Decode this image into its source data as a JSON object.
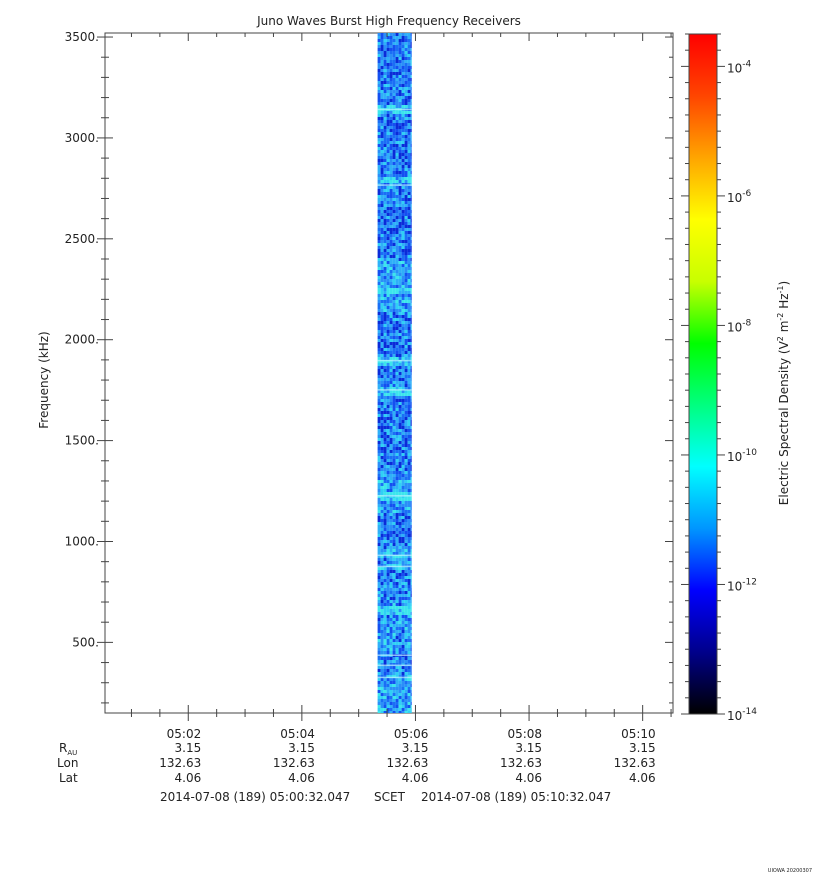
{
  "chart_data": {
    "type": "heatmap",
    "title": "Juno Waves Burst High Frequency Receivers",
    "ylabel": "Frequency (kHz)",
    "ylim": [
      150,
      3520
    ],
    "y_ticks": [
      500,
      1000,
      1500,
      2000,
      2500,
      3000,
      3500
    ],
    "y_tick_labels": [
      "500.",
      "1000.",
      "1500.",
      "2000.",
      "2500.",
      "3000.",
      "3500."
    ],
    "x_range": [
      "2014-07-08T05:00:32.047",
      "2014-07-08T05:10:32.047"
    ],
    "x_ticks": [
      "05:02",
      "05:04",
      "05:06",
      "05:08",
      "05:10"
    ],
    "data_block": {
      "start": "05:05:20",
      "end": "05:05:56",
      "freq_min": 150,
      "freq_max": 3520
    },
    "bright_bands_khz": [
      3150,
      2800,
      2250,
      1900,
      1750,
      1230,
      670,
      950,
      880
    ],
    "background_level_exponent": -12,
    "colorbar": {
      "label_prefix": "Electric Spectral Density (V",
      "label_parts": [
        "Electric Spectral Density (V",
        "2",
        " m",
        "-2",
        " Hz",
        "-1",
        ")"
      ],
      "range_exponent": [
        -14,
        -3.5
      ],
      "tick_exponents": [
        -14,
        -12,
        -10,
        -8,
        -6,
        -4
      ],
      "tick_base": "10",
      "tick_labels": [
        "-14",
        "-12",
        "-10",
        "-8",
        "-6",
        "-4"
      ],
      "colors": [
        "#000000",
        "#00008b",
        "#0000ff",
        "#0096ff",
        "#00ffff",
        "#00ff7f",
        "#00ff00",
        "#c8ff00",
        "#ffff00",
        "#ffa500",
        "#ff4500",
        "#ff0000"
      ]
    },
    "ephemeris": {
      "row_labels": {
        "r_main": "R",
        "r_sub": "AU",
        "lon": "Lon",
        "lat": "Lat"
      },
      "r_au": [
        "3.15",
        "3.15",
        "3.15",
        "3.15",
        "3.15"
      ],
      "lon": [
        "132.63",
        "132.63",
        "132.63",
        "132.63",
        "132.63"
      ],
      "lat": [
        "4.06",
        "4.06",
        "4.06",
        "4.06",
        "4.06"
      ]
    },
    "time_footer": {
      "start": "2014-07-08 (189) 05:00:32.047",
      "scet": "SCET",
      "end": "2014-07-08 (189) 05:10:32.047"
    },
    "credit": "UIOWA 20200307"
  }
}
